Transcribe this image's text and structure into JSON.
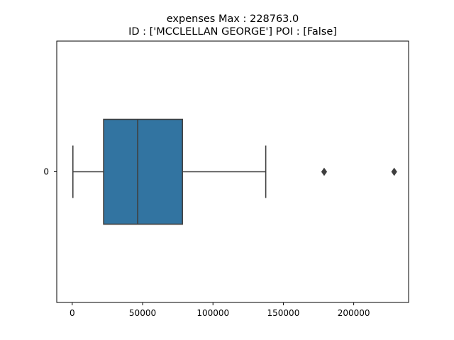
{
  "chart_data": {
    "type": "box",
    "title": "expenses  Max : 228763.0",
    "subtitle": "ID : ['MCCLELLAN GEORGE']  POI : [False]",
    "orientation": "horizontal",
    "xlabel": "",
    "ylabel": "",
    "xlim": [
      -11000,
      239000
    ],
    "x_ticks": [
      0,
      50000,
      100000,
      150000,
      200000
    ],
    "x_tick_labels": [
      "0",
      "50000",
      "100000",
      "150000",
      "200000"
    ],
    "categories": [
      "0"
    ],
    "box": {
      "whisker_low": 475,
      "q1": 22300,
      "median": 46500,
      "q3": 78300,
      "whisker_high": 137500
    },
    "outliers": [
      179000,
      228763
    ],
    "colors": {
      "box_fill": "#3274a1",
      "line": "#3f3f3f",
      "outlier": "#3f3f3f"
    },
    "grid": false
  }
}
